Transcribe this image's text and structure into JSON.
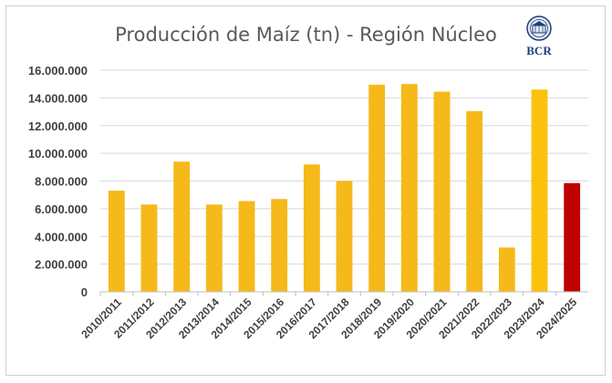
{
  "chart_data": {
    "type": "bar",
    "title": "Producción de Maíz (tn) - Región Núcleo",
    "xlabel": "",
    "ylabel": "",
    "ylim": [
      0,
      16000000
    ],
    "y_ticks": [
      "0",
      "2.000.000",
      "4.000.000",
      "6.000.000",
      "8.000.000",
      "10.000.000",
      "12.000.000",
      "14.000.000",
      "16.000.000"
    ],
    "grid": true,
    "categories": [
      "2010/2011",
      "2011/2012",
      "2012/2013",
      "2013/2014",
      "2014/2015",
      "2015/2016",
      "2016/2017",
      "2017/2018",
      "2018/2019",
      "2019/2020",
      "2020/2021",
      "2021/2022",
      "2022/2023",
      "2023/2024",
      "2024/2025"
    ],
    "values": [
      7300000,
      6300000,
      9400000,
      6300000,
      6550000,
      6700000,
      9200000,
      8000000,
      14950000,
      15000000,
      14450000,
      13050000,
      3200000,
      14600000,
      7850000
    ],
    "colors": [
      "#f5b919",
      "#f5b919",
      "#f5b919",
      "#f5b919",
      "#f5b919",
      "#f5b919",
      "#f5b919",
      "#f5b919",
      "#f5b919",
      "#f5b919",
      "#f5b919",
      "#f5b919",
      "#f5b919",
      "#fcc10d",
      "#c00000"
    ]
  },
  "logo": {
    "text": "BCR",
    "icon": "bcr-seal-icon"
  }
}
